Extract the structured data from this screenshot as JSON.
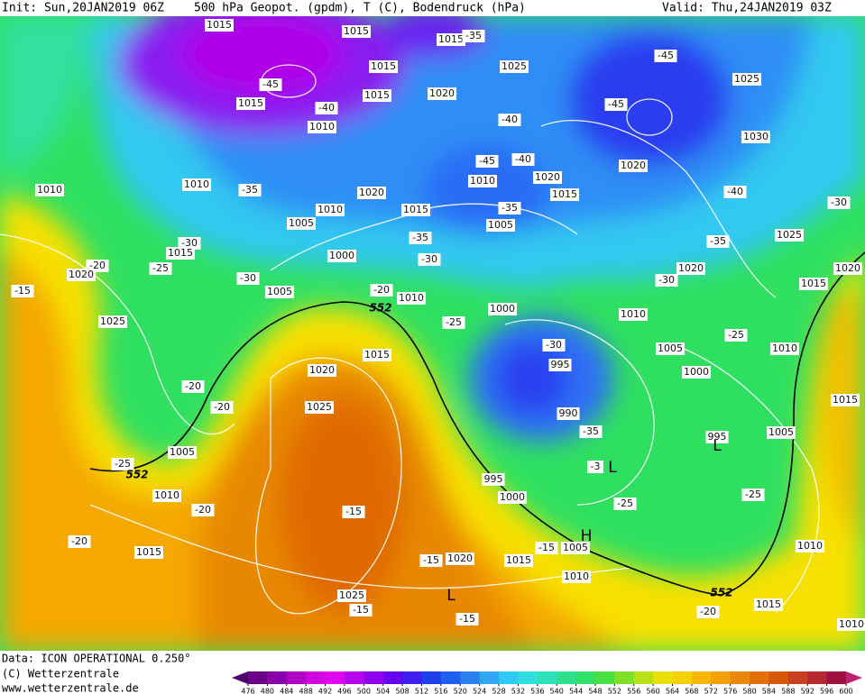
{
  "header": {
    "init": "Init: Sun,20JAN2019 06Z",
    "description": "500 hPa Geopot. (gpdm), T (C), Bodendruck (hPa)",
    "valid": "Valid: Thu,24JAN2019 03Z"
  },
  "footer": {
    "source": "Data: ICON OPERATIONAL 0.250°",
    "copyright": "(C) Wetterzentrale",
    "website": "www.wetterzentrale.de"
  },
  "map": {
    "labels": [
      "1015",
      "1015",
      "1015",
      "-35",
      "1015",
      "1025",
      "-45",
      "1025",
      "-45",
      "1015",
      "1020",
      "1015",
      "-40",
      "-45",
      "1010",
      "-40",
      "1030",
      "-45",
      "-40",
      "1020",
      "1010",
      "1020",
      "1010",
      "1010",
      "-35",
      "1020",
      "1015",
      "-40",
      "-30",
      "1010",
      "1015",
      "-35",
      "1005",
      "1005",
      "1025",
      "-30",
      "-35",
      "-35",
      "1015",
      "1000",
      "-30",
      "-20",
      "-25",
      "1020",
      "-30",
      "1020",
      "1020",
      "-15",
      "1005",
      "-20",
      "1010",
      "-30",
      "1015",
      "1000",
      "1010",
      "1025",
      "-25",
      "-25",
      "1005",
      "1010",
      "-30",
      "1015",
      "995",
      "1000",
      "1020",
      "-20",
      "1015",
      "1025",
      "-20",
      "990",
      "-35",
      "995",
      "1005",
      "1005",
      "-25",
      "-3",
      "995",
      "1000",
      "1010",
      "-20",
      "-25",
      "-25",
      "-15",
      "-20",
      "1005",
      "-15",
      "1010",
      "1015",
      "1020",
      "1015",
      "-15",
      "1010",
      "1025",
      "1015",
      "-15",
      "-20",
      "-15",
      "1010"
    ],
    "contour_labels": [
      "552",
      "552",
      "552"
    ],
    "pressure_centers": [
      "H",
      "L",
      "L",
      "L"
    ]
  },
  "colorbar": {
    "ticks": [
      476,
      480,
      484,
      488,
      492,
      496,
      500,
      504,
      508,
      512,
      516,
      520,
      524,
      528,
      532,
      536,
      540,
      544,
      548,
      552,
      556,
      560,
      564,
      568,
      572,
      576,
      580,
      584,
      588,
      592,
      596,
      600
    ],
    "colors": [
      "#4a0068",
      "#6a0088",
      "#8a00a8",
      "#b000c8",
      "#d000e0",
      "#e000f0",
      "#b800f0",
      "#9000f0",
      "#6800f0",
      "#4020f0",
      "#2040f0",
      "#2060f5",
      "#2880f8",
      "#30a8f8",
      "#30c8f5",
      "#30e0e0",
      "#30e0b8",
      "#30e090",
      "#30e068",
      "#48e040",
      "#80e028",
      "#b8e018",
      "#e8e000",
      "#f8d000",
      "#f8b800",
      "#f4a000",
      "#ec8800",
      "#e47000",
      "#d85800",
      "#c84020",
      "#b82830",
      "#a01040",
      "#c02070"
    ]
  }
}
